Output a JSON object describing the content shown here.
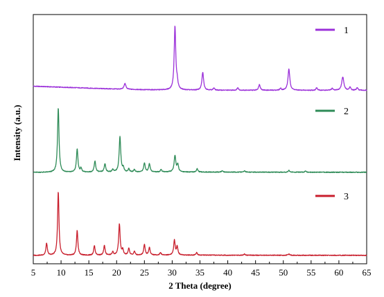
{
  "chart_data": {
    "type": "line",
    "title": "",
    "xlabel": "2 Theta (degree)",
    "ylabel": "Intensity  (a.u.)",
    "xlim": [
      5,
      65
    ],
    "x_ticks": [
      5,
      10,
      15,
      20,
      25,
      30,
      35,
      40,
      45,
      50,
      55,
      60,
      65
    ],
    "y_ticks_shown": false,
    "grid": false,
    "legend_placement": "right, beside each trace",
    "series": [
      {
        "name": "1",
        "color": "#9b30d9",
        "baseline": [
          [
            5,
            0.07
          ],
          [
            10,
            0.055
          ],
          [
            15,
            0.04
          ],
          [
            20,
            0.025
          ],
          [
            25,
            0.015
          ],
          [
            30,
            0.01
          ],
          [
            35,
            0.008
          ],
          [
            45,
            0.006
          ],
          [
            55,
            0.006
          ],
          [
            65,
            0.006
          ]
        ],
        "peaks": [
          {
            "x": 21.5,
            "h": 0.09,
            "w": 0.2
          },
          {
            "x": 30.5,
            "h": 1.0,
            "w": 0.17
          },
          {
            "x": 30.9,
            "h": 0.1,
            "w": 0.15
          },
          {
            "x": 35.5,
            "h": 0.28,
            "w": 0.18
          },
          {
            "x": 37.5,
            "h": 0.035,
            "w": 0.15
          },
          {
            "x": 41.8,
            "h": 0.04,
            "w": 0.15
          },
          {
            "x": 45.7,
            "h": 0.09,
            "w": 0.18
          },
          {
            "x": 49.5,
            "h": 0.03,
            "w": 0.15
          },
          {
            "x": 51.0,
            "h": 0.33,
            "w": 0.2
          },
          {
            "x": 56.0,
            "h": 0.04,
            "w": 0.15
          },
          {
            "x": 58.8,
            "h": 0.03,
            "w": 0.15
          },
          {
            "x": 60.7,
            "h": 0.21,
            "w": 0.22
          },
          {
            "x": 62.0,
            "h": 0.05,
            "w": 0.15
          },
          {
            "x": 63.3,
            "h": 0.04,
            "w": 0.15
          }
        ]
      },
      {
        "name": "2",
        "color": "#2e8b57",
        "baseline": [
          [
            5,
            0.0
          ],
          [
            10,
            0.0
          ],
          [
            20,
            0.004
          ],
          [
            30,
            0.006
          ],
          [
            40,
            0.004
          ],
          [
            50,
            0.003
          ],
          [
            65,
            0.002
          ]
        ],
        "peaks": [
          {
            "x": 9.5,
            "h": 1.0,
            "w": 0.16
          },
          {
            "x": 12.9,
            "h": 0.36,
            "w": 0.16
          },
          {
            "x": 13.6,
            "h": 0.06,
            "w": 0.14
          },
          {
            "x": 16.1,
            "h": 0.17,
            "w": 0.16
          },
          {
            "x": 17.9,
            "h": 0.13,
            "w": 0.16
          },
          {
            "x": 19.3,
            "h": 0.04,
            "w": 0.14
          },
          {
            "x": 20.6,
            "h": 0.55,
            "w": 0.17
          },
          {
            "x": 21.2,
            "h": 0.06,
            "w": 0.14
          },
          {
            "x": 22.2,
            "h": 0.05,
            "w": 0.14
          },
          {
            "x": 23.2,
            "h": 0.04,
            "w": 0.14
          },
          {
            "x": 25.0,
            "h": 0.14,
            "w": 0.16
          },
          {
            "x": 25.9,
            "h": 0.13,
            "w": 0.16
          },
          {
            "x": 28.0,
            "h": 0.04,
            "w": 0.14
          },
          {
            "x": 30.5,
            "h": 0.25,
            "w": 0.18
          },
          {
            "x": 31.0,
            "h": 0.11,
            "w": 0.16
          },
          {
            "x": 34.5,
            "h": 0.05,
            "w": 0.15
          },
          {
            "x": 39.0,
            "h": 0.02,
            "w": 0.15
          },
          {
            "x": 43.0,
            "h": 0.02,
            "w": 0.15
          },
          {
            "x": 51.0,
            "h": 0.03,
            "w": 0.15
          },
          {
            "x": 54.0,
            "h": 0.02,
            "w": 0.15
          }
        ]
      },
      {
        "name": "3",
        "color": "#c81e2c",
        "baseline": [
          [
            5,
            0.0
          ],
          [
            10,
            0.0
          ],
          [
            20,
            0.004
          ],
          [
            30,
            0.006
          ],
          [
            40,
            0.004
          ],
          [
            50,
            0.003
          ],
          [
            65,
            0.002
          ]
        ],
        "peaks": [
          {
            "x": 7.4,
            "h": 0.19,
            "w": 0.15
          },
          {
            "x": 9.5,
            "h": 1.0,
            "w": 0.15
          },
          {
            "x": 12.9,
            "h": 0.39,
            "w": 0.15
          },
          {
            "x": 16.0,
            "h": 0.15,
            "w": 0.15
          },
          {
            "x": 17.8,
            "h": 0.15,
            "w": 0.15
          },
          {
            "x": 19.3,
            "h": 0.05,
            "w": 0.14
          },
          {
            "x": 20.5,
            "h": 0.49,
            "w": 0.16
          },
          {
            "x": 21.1,
            "h": 0.08,
            "w": 0.14
          },
          {
            "x": 22.2,
            "h": 0.11,
            "w": 0.14
          },
          {
            "x": 23.2,
            "h": 0.06,
            "w": 0.14
          },
          {
            "x": 25.0,
            "h": 0.17,
            "w": 0.15
          },
          {
            "x": 25.9,
            "h": 0.12,
            "w": 0.15
          },
          {
            "x": 27.9,
            "h": 0.04,
            "w": 0.14
          },
          {
            "x": 30.4,
            "h": 0.23,
            "w": 0.16
          },
          {
            "x": 30.9,
            "h": 0.13,
            "w": 0.15
          },
          {
            "x": 34.4,
            "h": 0.04,
            "w": 0.15
          },
          {
            "x": 43.0,
            "h": 0.02,
            "w": 0.15
          },
          {
            "x": 51.0,
            "h": 0.02,
            "w": 0.15
          }
        ]
      }
    ]
  }
}
